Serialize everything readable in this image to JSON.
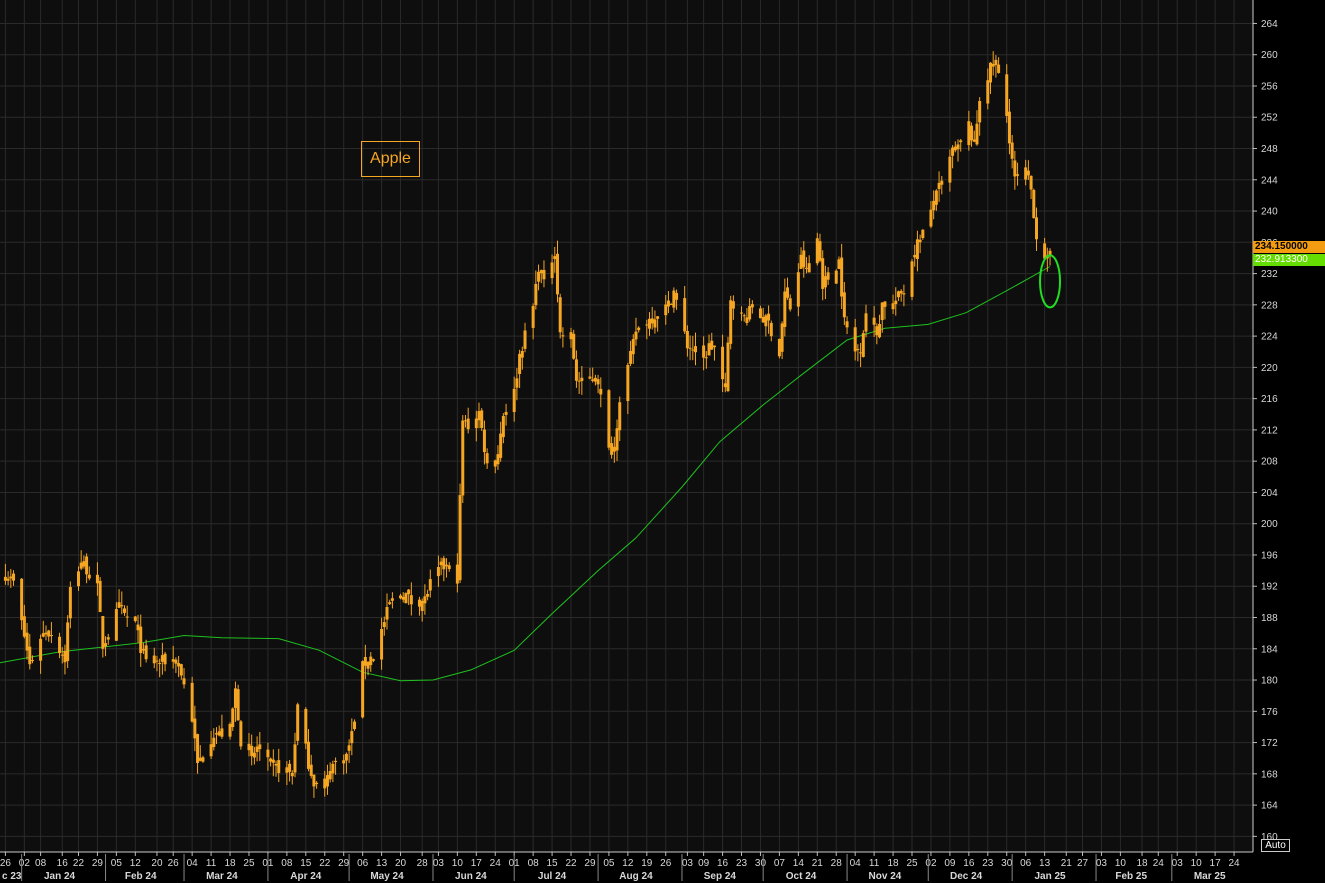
{
  "chart_data": {
    "type": "candlestick",
    "title": "Apple",
    "last_price_label": "234.150000",
    "ma_value_label": "232.913300",
    "autoscale_label": "Auto",
    "ylim": [
      158,
      267
    ],
    "yticks": [
      160,
      164,
      168,
      172,
      176,
      180,
      184,
      188,
      192,
      196,
      200,
      204,
      208,
      212,
      216,
      220,
      224,
      228,
      232,
      236,
      240,
      244,
      248,
      252,
      256,
      260,
      264
    ],
    "xlim": [
      "2023-12-24",
      "2025-03-31"
    ],
    "day_ticks": [
      {
        "d": "2023-12-26",
        "l": "26"
      },
      {
        "d": "2024-01-02",
        "l": "02"
      },
      {
        "d": "2024-01-08",
        "l": "08"
      },
      {
        "d": "2024-01-16",
        "l": "16"
      },
      {
        "d": "2024-01-22",
        "l": "22"
      },
      {
        "d": "2024-01-29",
        "l": "29"
      },
      {
        "d": "2024-02-05",
        "l": "05"
      },
      {
        "d": "2024-02-12",
        "l": "12"
      },
      {
        "d": "2024-02-20",
        "l": "20"
      },
      {
        "d": "2024-02-26",
        "l": "26"
      },
      {
        "d": "2024-03-04",
        "l": "04"
      },
      {
        "d": "2024-03-11",
        "l": "11"
      },
      {
        "d": "2024-03-18",
        "l": "18"
      },
      {
        "d": "2024-03-25",
        "l": "25"
      },
      {
        "d": "2024-04-01",
        "l": "01"
      },
      {
        "d": "2024-04-08",
        "l": "08"
      },
      {
        "d": "2024-04-15",
        "l": "15"
      },
      {
        "d": "2024-04-22",
        "l": "22"
      },
      {
        "d": "2024-04-29",
        "l": "29"
      },
      {
        "d": "2024-05-06",
        "l": "06"
      },
      {
        "d": "2024-05-13",
        "l": "13"
      },
      {
        "d": "2024-05-20",
        "l": "20"
      },
      {
        "d": "2024-05-28",
        "l": "28"
      },
      {
        "d": "2024-06-03",
        "l": "03"
      },
      {
        "d": "2024-06-10",
        "l": "10"
      },
      {
        "d": "2024-06-17",
        "l": "17"
      },
      {
        "d": "2024-06-24",
        "l": "24"
      },
      {
        "d": "2024-07-01",
        "l": "01"
      },
      {
        "d": "2024-07-08",
        "l": "08"
      },
      {
        "d": "2024-07-15",
        "l": "15"
      },
      {
        "d": "2024-07-22",
        "l": "22"
      },
      {
        "d": "2024-07-29",
        "l": "29"
      },
      {
        "d": "2024-08-05",
        "l": "05"
      },
      {
        "d": "2024-08-12",
        "l": "12"
      },
      {
        "d": "2024-08-19",
        "l": "19"
      },
      {
        "d": "2024-08-26",
        "l": "26"
      },
      {
        "d": "2024-09-03",
        "l": "03"
      },
      {
        "d": "2024-09-09",
        "l": "09"
      },
      {
        "d": "2024-09-16",
        "l": "16"
      },
      {
        "d": "2024-09-23",
        "l": "23"
      },
      {
        "d": "2024-09-30",
        "l": "30"
      },
      {
        "d": "2024-10-07",
        "l": "07"
      },
      {
        "d": "2024-10-14",
        "l": "14"
      },
      {
        "d": "2024-10-21",
        "l": "21"
      },
      {
        "d": "2024-10-28",
        "l": "28"
      },
      {
        "d": "2024-11-04",
        "l": "04"
      },
      {
        "d": "2024-11-11",
        "l": "11"
      },
      {
        "d": "2024-11-18",
        "l": "18"
      },
      {
        "d": "2024-11-25",
        "l": "25"
      },
      {
        "d": "2024-12-02",
        "l": "02"
      },
      {
        "d": "2024-12-09",
        "l": "09"
      },
      {
        "d": "2024-12-16",
        "l": "16"
      },
      {
        "d": "2024-12-23",
        "l": "23"
      },
      {
        "d": "2024-12-30",
        "l": "30"
      },
      {
        "d": "2025-01-06",
        "l": "06"
      },
      {
        "d": "2025-01-13",
        "l": "13"
      },
      {
        "d": "2025-01-21",
        "l": "21"
      },
      {
        "d": "2025-01-27",
        "l": "27"
      },
      {
        "d": "2025-02-03",
        "l": "03"
      },
      {
        "d": "2025-02-10",
        "l": "10"
      },
      {
        "d": "2025-02-18",
        "l": "18"
      },
      {
        "d": "2025-02-24",
        "l": "24"
      },
      {
        "d": "2025-03-03",
        "l": "03"
      },
      {
        "d": "2025-03-10",
        "l": "10"
      },
      {
        "d": "2025-03-17",
        "l": "17"
      },
      {
        "d": "2025-03-24",
        "l": "24"
      }
    ],
    "month_labels": [
      {
        "d": "2023-12-24",
        "l": "c 23"
      },
      {
        "d": "2024-01-15",
        "l": "Jan 24"
      },
      {
        "d": "2024-02-14",
        "l": "Feb 24"
      },
      {
        "d": "2024-03-15",
        "l": "Mar 24"
      },
      {
        "d": "2024-04-15",
        "l": "Apr 24"
      },
      {
        "d": "2024-05-15",
        "l": "May 24"
      },
      {
        "d": "2024-06-15",
        "l": "Jun 24"
      },
      {
        "d": "2024-07-15",
        "l": "Jul 24"
      },
      {
        "d": "2024-08-15",
        "l": "Aug 24"
      },
      {
        "d": "2024-09-15",
        "l": "Sep 24"
      },
      {
        "d": "2024-10-15",
        "l": "Oct 24"
      },
      {
        "d": "2024-11-15",
        "l": "Nov 24"
      },
      {
        "d": "2024-12-15",
        "l": "Dec 24"
      },
      {
        "d": "2025-01-15",
        "l": "Jan 25"
      },
      {
        "d": "2025-02-14",
        "l": "Feb 25"
      },
      {
        "d": "2025-03-15",
        "l": "Mar 25"
      }
    ],
    "month_starts": [
      "2024-01-01",
      "2024-02-01",
      "2024-03-01",
      "2024-04-01",
      "2024-05-01",
      "2024-06-01",
      "2024-07-01",
      "2024-08-01",
      "2024-09-01",
      "2024-10-01",
      "2024-11-01",
      "2024-12-01",
      "2025-01-01",
      "2025-02-01",
      "2025-03-01"
    ],
    "closes": [
      {
        "d": "2023-12-26",
        "c": 193.5
      },
      {
        "d": "2023-12-29",
        "c": 192.5
      },
      {
        "d": "2024-01-02",
        "c": 185.6
      },
      {
        "d": "2024-01-04",
        "c": 181.9
      },
      {
        "d": "2024-01-08",
        "c": 185.6
      },
      {
        "d": "2024-01-10",
        "c": 186.2
      },
      {
        "d": "2024-01-12",
        "c": 185.9
      },
      {
        "d": "2024-01-17",
        "c": 182.7
      },
      {
        "d": "2024-01-19",
        "c": 191.6
      },
      {
        "d": "2024-01-23",
        "c": 195.2
      },
      {
        "d": "2024-01-25",
        "c": 194.2
      },
      {
        "d": "2024-01-29",
        "c": 191.7
      },
      {
        "d": "2024-01-31",
        "c": 184.4
      },
      {
        "d": "2024-02-02",
        "c": 185.9
      },
      {
        "d": "2024-02-06",
        "c": 189.3
      },
      {
        "d": "2024-02-08",
        "c": 188.3
      },
      {
        "d": "2024-02-12",
        "c": 187.2
      },
      {
        "d": "2024-02-14",
        "c": 184.2
      },
      {
        "d": "2024-02-16",
        "c": 182.3
      },
      {
        "d": "2024-02-21",
        "c": 182.3
      },
      {
        "d": "2024-02-23",
        "c": 182.5
      },
      {
        "d": "2024-02-27",
        "c": 182.6
      },
      {
        "d": "2024-02-29",
        "c": 180.8
      },
      {
        "d": "2024-03-04",
        "c": 175.1
      },
      {
        "d": "2024-03-06",
        "c": 169.1
      },
      {
        "d": "2024-03-08",
        "c": 170.7
      },
      {
        "d": "2024-03-12",
        "c": 173.2
      },
      {
        "d": "2024-03-14",
        "c": 173.0
      },
      {
        "d": "2024-03-18",
        "c": 173.7
      },
      {
        "d": "2024-03-20",
        "c": 178.7
      },
      {
        "d": "2024-03-22",
        "c": 172.3
      },
      {
        "d": "2024-03-26",
        "c": 169.7
      },
      {
        "d": "2024-03-28",
        "c": 171.5
      },
      {
        "d": "2024-04-02",
        "c": 168.8
      },
      {
        "d": "2024-04-04",
        "c": 168.8
      },
      {
        "d": "2024-04-08",
        "c": 168.5
      },
      {
        "d": "2024-04-10",
        "c": 167.8
      },
      {
        "d": "2024-04-12",
        "c": 176.6
      },
      {
        "d": "2024-04-16",
        "c": 169.4
      },
      {
        "d": "2024-04-18",
        "c": 167.0
      },
      {
        "d": "2024-04-22",
        "c": 165.8
      },
      {
        "d": "2024-04-24",
        "c": 169.0
      },
      {
        "d": "2024-04-26",
        "c": 169.3
      },
      {
        "d": "2024-04-30",
        "c": 170.3
      },
      {
        "d": "2024-05-02",
        "c": 173.0
      },
      {
        "d": "2024-05-06",
        "c": 181.7
      },
      {
        "d": "2024-05-08",
        "c": 182.7
      },
      {
        "d": "2024-05-10",
        "c": 183.1
      },
      {
        "d": "2024-05-14",
        "c": 187.4
      },
      {
        "d": "2024-05-16",
        "c": 189.8
      },
      {
        "d": "2024-05-20",
        "c": 191.0
      },
      {
        "d": "2024-05-22",
        "c": 190.9
      },
      {
        "d": "2024-05-24",
        "c": 189.98
      },
      {
        "d": "2024-05-29",
        "c": 190.3
      },
      {
        "d": "2024-05-31",
        "c": 192.3
      },
      {
        "d": "2024-06-04",
        "c": 194.4
      },
      {
        "d": "2024-06-06",
        "c": 194.5
      },
      {
        "d": "2024-06-10",
        "c": 193.1
      },
      {
        "d": "2024-06-12",
        "c": 213.1
      },
      {
        "d": "2024-06-14",
        "c": 212.5
      },
      {
        "d": "2024-06-18",
        "c": 214.3
      },
      {
        "d": "2024-06-21",
        "c": 207.5
      },
      {
        "d": "2024-06-25",
        "c": 209.1
      },
      {
        "d": "2024-06-27",
        "c": 214.1
      },
      {
        "d": "2024-07-01",
        "c": 216.8
      },
      {
        "d": "2024-07-03",
        "c": 221.6
      },
      {
        "d": "2024-07-08",
        "c": 227.8
      },
      {
        "d": "2024-07-10",
        "c": 232.98
      },
      {
        "d": "2024-07-12",
        "c": 230.5
      },
      {
        "d": "2024-07-16",
        "c": 235.0
      },
      {
        "d": "2024-07-18",
        "c": 224.3
      },
      {
        "d": "2024-07-22",
        "c": 223.96
      },
      {
        "d": "2024-07-24",
        "c": 218.5
      },
      {
        "d": "2024-07-26",
        "c": 217.96
      },
      {
        "d": "2024-07-30",
        "c": 218.8
      },
      {
        "d": "2024-08-01",
        "c": 218.4
      },
      {
        "d": "2024-08-05",
        "c": 209.3
      },
      {
        "d": "2024-08-07",
        "c": 209.8
      },
      {
        "d": "2024-08-09",
        "c": 216.2
      },
      {
        "d": "2024-08-13",
        "c": 221.3
      },
      {
        "d": "2024-08-15",
        "c": 224.7
      },
      {
        "d": "2024-08-19",
        "c": 225.9
      },
      {
        "d": "2024-08-21",
        "c": 226.4
      },
      {
        "d": "2024-08-23",
        "c": 226.8
      },
      {
        "d": "2024-08-27",
        "c": 228.0
      },
      {
        "d": "2024-08-29",
        "c": 229.8
      },
      {
        "d": "2024-09-03",
        "c": 222.8
      },
      {
        "d": "2024-09-05",
        "c": 222.4
      },
      {
        "d": "2024-09-09",
        "c": 220.9
      },
      {
        "d": "2024-09-11",
        "c": 222.7
      },
      {
        "d": "2024-09-13",
        "c": 222.5
      },
      {
        "d": "2024-09-17",
        "c": 216.8
      },
      {
        "d": "2024-09-19",
        "c": 228.9
      },
      {
        "d": "2024-09-23",
        "c": 226.5
      },
      {
        "d": "2024-09-25",
        "c": 226.4
      },
      {
        "d": "2024-09-27",
        "c": 227.8
      },
      {
        "d": "2024-10-01",
        "c": 226.2
      },
      {
        "d": "2024-10-03",
        "c": 225.7
      },
      {
        "d": "2024-10-07",
        "c": 221.7
      },
      {
        "d": "2024-10-09",
        "c": 229.5
      },
      {
        "d": "2024-10-11",
        "c": 227.6
      },
      {
        "d": "2024-10-15",
        "c": 233.9
      },
      {
        "d": "2024-10-17",
        "c": 232.2
      },
      {
        "d": "2024-10-21",
        "c": 236.5
      },
      {
        "d": "2024-10-23",
        "c": 230.8
      },
      {
        "d": "2024-10-25",
        "c": 231.4
      },
      {
        "d": "2024-10-29",
        "c": 233.7
      },
      {
        "d": "2024-10-31",
        "c": 225.9
      },
      {
        "d": "2024-11-04",
        "c": 222.0
      },
      {
        "d": "2024-11-06",
        "c": 222.7
      },
      {
        "d": "2024-11-08",
        "c": 227.0
      },
      {
        "d": "2024-11-12",
        "c": 224.2
      },
      {
        "d": "2024-11-14",
        "c": 228.2
      },
      {
        "d": "2024-11-18",
        "c": 228.0
      },
      {
        "d": "2024-11-20",
        "c": 229.0
      },
      {
        "d": "2024-11-22",
        "c": 229.9
      },
      {
        "d": "2024-11-26",
        "c": 235.1
      },
      {
        "d": "2024-12-02",
        "c": 239.6
      },
      {
        "d": "2024-12-04",
        "c": 243.0
      },
      {
        "d": "2024-12-06",
        "c": 242.8
      },
      {
        "d": "2024-12-10",
        "c": 247.8
      },
      {
        "d": "2024-12-12",
        "c": 247.96
      },
      {
        "d": "2024-12-16",
        "c": 251.0
      },
      {
        "d": "2024-12-18",
        "c": 248.1
      },
      {
        "d": "2024-12-20",
        "c": 254.5
      },
      {
        "d": "2024-12-24",
        "c": 258.2
      },
      {
        "d": "2024-12-26",
        "c": 259.0
      },
      {
        "d": "2024-12-30",
        "c": 252.2
      },
      {
        "d": "2025-01-02",
        "c": 243.9
      },
      {
        "d": "2025-01-06",
        "c": 245.0
      },
      {
        "d": "2025-01-08",
        "c": 242.7
      },
      {
        "d": "2025-01-10",
        "c": 236.9
      },
      {
        "d": "2025-01-13",
        "c": 234.4
      },
      {
        "d": "2025-01-14",
        "c": 233.3
      },
      {
        "d": "2025-01-15",
        "c": 234.15
      }
    ],
    "ma_series": [
      {
        "d": "2023-12-24",
        "v": 182.2
      },
      {
        "d": "2024-01-15",
        "v": 183.6
      },
      {
        "d": "2024-02-15",
        "v": 184.8
      },
      {
        "d": "2024-03-01",
        "v": 185.7
      },
      {
        "d": "2024-03-15",
        "v": 185.4
      },
      {
        "d": "2024-04-05",
        "v": 185.3
      },
      {
        "d": "2024-04-20",
        "v": 183.8
      },
      {
        "d": "2024-05-06",
        "v": 181.0
      },
      {
        "d": "2024-05-20",
        "v": 179.9
      },
      {
        "d": "2024-06-01",
        "v": 180.0
      },
      {
        "d": "2024-06-15",
        "v": 181.3
      },
      {
        "d": "2024-07-01",
        "v": 183.8
      },
      {
        "d": "2024-07-15",
        "v": 188.5
      },
      {
        "d": "2024-08-01",
        "v": 194.0
      },
      {
        "d": "2024-08-15",
        "v": 198.2
      },
      {
        "d": "2024-09-01",
        "v": 204.7
      },
      {
        "d": "2024-09-15",
        "v": 210.5
      },
      {
        "d": "2024-10-01",
        "v": 215.2
      },
      {
        "d": "2024-10-15",
        "v": 219.0
      },
      {
        "d": "2024-11-01",
        "v": 223.5
      },
      {
        "d": "2024-11-15",
        "v": 225.0
      },
      {
        "d": "2024-12-01",
        "v": 225.5
      },
      {
        "d": "2024-12-15",
        "v": 227.0
      },
      {
        "d": "2024-12-31",
        "v": 230.0
      },
      {
        "d": "2025-01-15",
        "v": 232.9
      }
    ],
    "highlight": {
      "d": "2025-01-15",
      "y": 231.0
    },
    "colors": {
      "background": "#000000",
      "plot_background": "#0e0e0e",
      "grid": "#2a2a2a",
      "candle": "#f5a623",
      "ma_line": "#1fc11f",
      "highlight_ellipse": "#22dd22",
      "axis_text": "#d8d8d8"
    }
  }
}
